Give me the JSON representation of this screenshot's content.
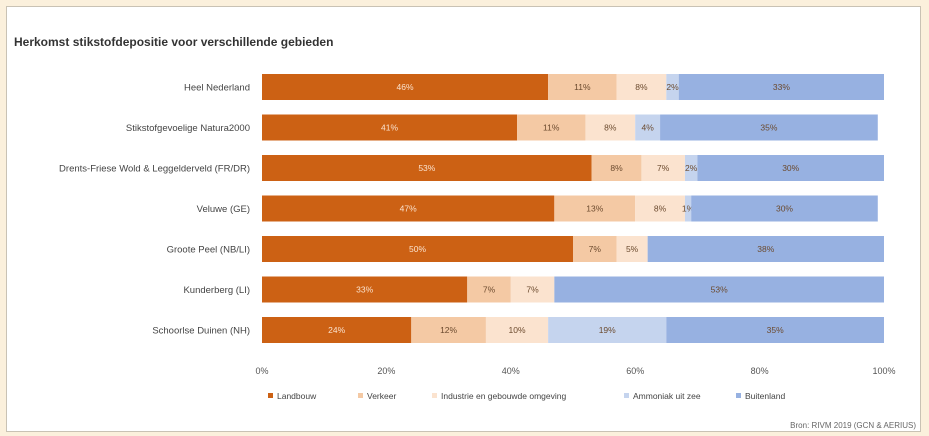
{
  "chart_data": {
    "type": "bar",
    "orientation": "horizontal",
    "stacked": true,
    "title": "Herkomst stikstofdepositie voor verschillende gebieden",
    "source": "Bron: RIVM 2019 (GCN & AERIUS)",
    "categories": [
      "Heel Nederland",
      "Stikstofgevoelige Natura2000",
      "Drents-Friese Wold & Leggelderveld (FR/DR)",
      "Veluwe (GE)",
      "Groote Peel (NB/LI)",
      "Kunderberg (LI)",
      "Schoorlse Duinen (NH)"
    ],
    "series": [
      {
        "name": "Landbouw",
        "color": "#cc6114",
        "values": [
          46,
          41,
          53,
          47,
          50,
          33,
          24
        ]
      },
      {
        "name": "Verkeer",
        "color": "#f4c9a4",
        "values": [
          11,
          11,
          8,
          13,
          7,
          7,
          12
        ]
      },
      {
        "name": "Industrie en gebouwde omgeving",
        "color": "#fbe3cf",
        "values": [
          8,
          8,
          7,
          8,
          5,
          7,
          10
        ]
      },
      {
        "name": "Ammoniak uit zee",
        "color": "#c5d4ee",
        "values": [
          2,
          4,
          2,
          1,
          0,
          0,
          19
        ]
      },
      {
        "name": "Buitenland",
        "color": "#97b1e1",
        "values": [
          33,
          35,
          30,
          30,
          38,
          53,
          35
        ]
      }
    ],
    "segment_labels": [
      [
        "46%",
        "11%",
        "8%",
        "2%",
        "33%"
      ],
      [
        "41%",
        "11%",
        "8%",
        "4%",
        "35%"
      ],
      [
        "53%",
        "8%",
        "7%",
        "2%",
        "30%"
      ],
      [
        "47%",
        "13%",
        "8%",
        "1%",
        "30%"
      ],
      [
        "50%",
        "7%",
        "5%",
        "",
        "38%"
      ],
      [
        "33%",
        "7%",
        "7%",
        "",
        "53%"
      ],
      [
        "24%",
        "12%",
        "10%",
        "19%",
        "35%"
      ]
    ],
    "x_ticks": [
      "0%",
      "20%",
      "40%",
      "60%",
      "80%",
      "100%"
    ],
    "xlim": [
      0,
      100
    ],
    "legend_position": "bottom",
    "grid": false
  }
}
